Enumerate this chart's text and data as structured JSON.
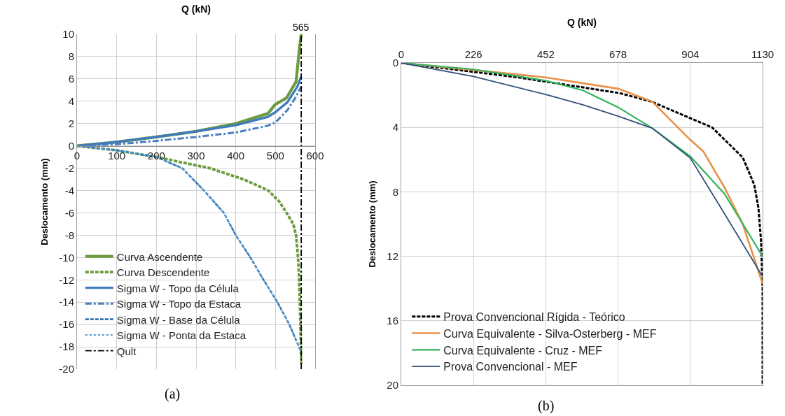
{
  "chart_data": [
    {
      "type": "line",
      "xlabel": "Q (kN)",
      "ylabel": "Deslocamento (mm)",
      "xlim": [
        0,
        600
      ],
      "xticks": [
        0,
        100,
        200,
        300,
        400,
        500,
        600
      ],
      "ylim": [
        -20,
        10
      ],
      "yticks": [
        -20,
        -18,
        -16,
        -14,
        -12,
        -10,
        -8,
        -6,
        -4,
        -2,
        0,
        2,
        4,
        6,
        8,
        10
      ],
      "grid": true,
      "legend": "bottom left",
      "annotations": [
        {
          "text": "565",
          "x": 565,
          "y": 10
        },
        "(a)"
      ],
      "series": [
        {
          "name": "Curva Ascendente",
          "color": "#6b9a3f",
          "line_style": "solid",
          "x": [
            0,
            100,
            200,
            300,
            400,
            481,
            499,
            528,
            552,
            561,
            565
          ],
          "values": [
            0,
            0.35,
            0.8,
            1.3,
            2.0,
            2.9,
            3.7,
            4.3,
            5.75,
            8.9,
            10
          ]
        },
        {
          "name": "Curva Descendente",
          "color": "#6b9a3f",
          "line_style": "dashed",
          "x": [
            0,
            100,
            200,
            335,
            420,
            482,
            510,
            528,
            545,
            552,
            557,
            560,
            563,
            565
          ],
          "values": [
            0,
            -0.4,
            -1.0,
            -2,
            -3,
            -4,
            -5,
            -6,
            -7,
            -8,
            -10,
            -12,
            -16,
            -19.5
          ]
        },
        {
          "name": "Sigma W - Topo da Célula",
          "color": "#3f7bbf",
          "line_style": "solid",
          "x": [
            0,
            100,
            200,
            300,
            400,
            481,
            499,
            530,
            555,
            565
          ],
          "values": [
            0,
            0.35,
            0.8,
            1.3,
            1.85,
            2.6,
            3.0,
            3.9,
            5.3,
            6.2
          ]
        },
        {
          "name": "Sigma W - Topo da Estaca",
          "color": "#4a7fc0",
          "line_style": "dashdot",
          "x": [
            0,
            100,
            200,
            300,
            400,
            480,
            500,
            530,
            550,
            565
          ],
          "values": [
            0,
            0.15,
            0.45,
            0.8,
            1.2,
            1.8,
            2.1,
            3.2,
            4.3,
            5.3
          ]
        },
        {
          "name": "Sigma W - Base da Célula",
          "color": "#2e75b6",
          "line_style": "dashed",
          "x": [
            0,
            100,
            200,
            265,
            320,
            370,
            400,
            437,
            470,
            505,
            535,
            563
          ],
          "values": [
            0,
            -0.4,
            -1.0,
            -2,
            -4,
            -6,
            -8,
            -10,
            -12,
            -14,
            -16,
            -18.3
          ]
        },
        {
          "name": "Sigma W - Ponta da Estaca",
          "color": "#5b9bd5",
          "line_style": "dotted",
          "x": [
            0,
            100,
            200,
            265,
            320,
            370,
            400,
            437,
            470,
            505,
            535,
            563
          ],
          "values": [
            0,
            -0.4,
            -1.0,
            -2,
            -4,
            -6,
            -8,
            -10,
            -12,
            -14,
            -16,
            -18.3
          ]
        },
        {
          "name": "Qult",
          "color": "#000000",
          "line_style": "dashdot",
          "x": [
            565,
            565
          ],
          "values": [
            -20,
            10
          ]
        }
      ]
    },
    {
      "type": "line",
      "xlabel": "Q (kN)",
      "ylabel": "Deslocamento (mm)",
      "xlim": [
        0,
        1130
      ],
      "xticks": [
        0,
        226,
        452,
        678,
        904,
        1130
      ],
      "ylim": [
        20,
        0
      ],
      "yticks": [
        0,
        4,
        8,
        12,
        16,
        20
      ],
      "grid": true,
      "legend": "bottom left",
      "annotations": [
        "(b)"
      ],
      "series": [
        {
          "name": "Prova Convencional Rígida - Teórico",
          "color": "#000000",
          "line_style": "dashed",
          "x": [
            0,
            367,
            682,
            783,
            972,
            1068,
            1104,
            1117,
            1125,
            1130,
            1130
          ],
          "values": [
            0,
            0.9,
            1.87,
            2.4,
            4.0,
            5.87,
            7.56,
            9,
            11,
            14,
            20
          ]
        },
        {
          "name": "Curva Equivalente - Silva-Osterberg - MEF",
          "color": "#e8914a",
          "line_style": "solid",
          "x": [
            0,
            226,
            452,
            678,
            785,
            900,
            945,
            1010,
            1068,
            1130
          ],
          "values": [
            0,
            0.44,
            0.9,
            1.6,
            2.4,
            4.7,
            5.5,
            7.7,
            10.0,
            13.7
          ]
        },
        {
          "name": "Curva Equivalente - Cruz - MEF",
          "color": "#33b35e",
          "line_style": "solid",
          "x": [
            0,
            226,
            452,
            568,
            678,
            785,
            904,
            1010,
            1130
          ],
          "values": [
            0,
            0.4,
            1.1,
            1.7,
            2.75,
            4.05,
            5.8,
            8.1,
            12
          ]
        },
        {
          "name": "Prova Convencional - MEF",
          "color": "#34507a",
          "line_style": "solid",
          "x": [
            0,
            226,
            452,
            568,
            678,
            785,
            904,
            1000,
            1130
          ],
          "values": [
            0,
            0.84,
            1.96,
            2.6,
            3.3,
            4.05,
            5.9,
            9.0,
            13.25
          ]
        }
      ]
    }
  ]
}
